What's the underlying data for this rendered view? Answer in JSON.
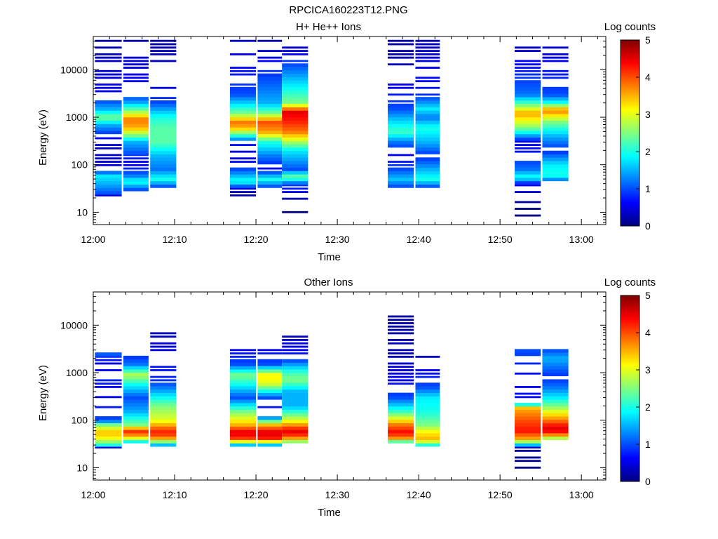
{
  "figure": {
    "title": "RPCICA160223T12.PNG"
  },
  "chart_data": [
    {
      "type": "heatmap",
      "title": "H+ He++ Ions",
      "xlabel": "Time",
      "ylabel": "Energy (eV)",
      "x_ticks": [
        "12:00",
        "12:10",
        "12:20",
        "12:30",
        "12:40",
        "12:50",
        "13:00"
      ],
      "x_range_minutes": [
        0,
        63
      ],
      "y_ticks": [
        "10",
        "100",
        "1000",
        "10000"
      ],
      "y_scale": "log",
      "y_range": [
        5.5,
        50000
      ],
      "colorbar": {
        "label": "Log counts",
        "ticks": [
          "0",
          "1",
          "2",
          "3",
          "4",
          "5"
        ],
        "range": [
          0,
          5
        ]
      },
      "sweeps": [
        {
          "start_min": 0.2,
          "end_min": 3.5,
          "profile": [
            [
              20,
              0
            ],
            [
              25,
              1
            ],
            [
              40,
              1.5
            ],
            [
              60,
              1.8
            ],
            [
              80,
              0.5
            ],
            [
              200,
              0.3
            ],
            [
              400,
              0.7
            ],
            [
              700,
              1.5
            ],
            [
              1000,
              2.5
            ],
            [
              1500,
              1.5
            ],
            [
              3000,
              0.6
            ],
            [
              40000,
              0.2
            ]
          ]
        },
        {
          "start_min": 3.7,
          "end_min": 6.8,
          "profile": [
            [
              25,
              0
            ],
            [
              30,
              1
            ],
            [
              45,
              2
            ],
            [
              60,
              1.2
            ],
            [
              100,
              0.5
            ],
            [
              300,
              1.5
            ],
            [
              600,
              3.5
            ],
            [
              900,
              3.8
            ],
            [
              1400,
              2.5
            ],
            [
              2000,
              1.5
            ],
            [
              3000,
              0.8
            ],
            [
              40000,
              0.2
            ]
          ]
        },
        {
          "start_min": 7.0,
          "end_min": 10.2,
          "profile": [
            [
              35,
              1
            ],
            [
              50,
              2.0
            ],
            [
              80,
              1.2
            ],
            [
              150,
              1.5
            ],
            [
              300,
              2.3
            ],
            [
              600,
              2.3
            ],
            [
              1000,
              2.0
            ],
            [
              2000,
              1.0
            ],
            [
              4000,
              0.5
            ],
            [
              40000,
              0.2
            ]
          ]
        },
        {
          "start_min": 16.8,
          "end_min": 20.0,
          "profile": [
            [
              14,
              0
            ],
            [
              30,
              0.4
            ],
            [
              45,
              2.0
            ],
            [
              80,
              1.0
            ],
            [
              150,
              0.4
            ],
            [
              300,
              0.8
            ],
            [
              600,
              3.5
            ],
            [
              800,
              3.8
            ],
            [
              1200,
              2.5
            ],
            [
              3000,
              1.0
            ],
            [
              40000,
              0.3
            ]
          ]
        },
        {
          "start_min": 20.2,
          "end_min": 23.2,
          "profile": [
            [
              35,
              1
            ],
            [
              50,
              2.0
            ],
            [
              80,
              0.6
            ],
            [
              150,
              1.2
            ],
            [
              300,
              2.0
            ],
            [
              500,
              3.6
            ],
            [
              800,
              4.0
            ],
            [
              1200,
              2.5
            ],
            [
              2000,
              1.5
            ],
            [
              40000,
              0.2
            ]
          ]
        },
        {
          "start_min": 23.2,
          "end_min": 26.4,
          "profile": [
            [
              6,
              0
            ],
            [
              14,
              0
            ],
            [
              40,
              1
            ],
            [
              55,
              2.5
            ],
            [
              80,
              1.0
            ],
            [
              200,
              1.8
            ],
            [
              500,
              3.8
            ],
            [
              800,
              4.2
            ],
            [
              1300,
              4.5
            ],
            [
              2000,
              2.5
            ],
            [
              30000,
              0.3
            ]
          ]
        },
        {
          "start_min": 36.2,
          "end_min": 39.4,
          "profile": [
            [
              35,
              1
            ],
            [
              50,
              1.6
            ],
            [
              80,
              1.0
            ],
            [
              150,
              0.5
            ],
            [
              300,
              1.2
            ],
            [
              500,
              2.2
            ],
            [
              900,
              1.6
            ],
            [
              1500,
              1.0
            ],
            [
              10000,
              0.3
            ],
            [
              40000,
              0.2
            ]
          ]
        },
        {
          "start_min": 39.6,
          "end_min": 42.6,
          "profile": [
            [
              35,
              1
            ],
            [
              50,
              2.0
            ],
            [
              80,
              1.5
            ],
            [
              150,
              0.8
            ],
            [
              300,
              1.5
            ],
            [
              600,
              2.0
            ],
            [
              1000,
              1.2
            ],
            [
              1500,
              1.8
            ],
            [
              3000,
              0.8
            ],
            [
              40000,
              0.3
            ]
          ]
        },
        {
          "start_min": 51.8,
          "end_min": 55.0,
          "profile": [
            [
              8,
              0
            ],
            [
              12,
              0
            ],
            [
              40,
              0.7
            ],
            [
              55,
              2.0
            ],
            [
              80,
              1.2
            ],
            [
              150,
              0.8
            ],
            [
              300,
              0.5
            ],
            [
              600,
              2.5
            ],
            [
              1200,
              3.6
            ],
            [
              1800,
              2.5
            ],
            [
              3000,
              1.2
            ],
            [
              40000,
              0.2
            ]
          ]
        },
        {
          "start_min": 55.2,
          "end_min": 58.4,
          "profile": [
            [
              45,
              1
            ],
            [
              60,
              2.0
            ],
            [
              100,
              1.8
            ],
            [
              200,
              0.8
            ],
            [
              400,
              1.5
            ],
            [
              800,
              2.5
            ],
            [
              1400,
              3.8
            ],
            [
              2000,
              2.0
            ],
            [
              3000,
              1.0
            ],
            [
              40000,
              0.3
            ]
          ]
        }
      ]
    },
    {
      "type": "heatmap",
      "title": "Other Ions",
      "xlabel": "Time",
      "ylabel": "Energy (eV)",
      "x_ticks": [
        "12:00",
        "12:10",
        "12:20",
        "12:30",
        "12:40",
        "12:50",
        "13:00"
      ],
      "x_range_minutes": [
        0,
        63
      ],
      "y_ticks": [
        "10",
        "100",
        "1000",
        "10000"
      ],
      "y_scale": "log",
      "y_range": [
        5.5,
        50000
      ],
      "colorbar": {
        "label": "Log counts",
        "ticks": [
          "0",
          "1",
          "2",
          "3",
          "4",
          "5"
        ],
        "range": [
          0,
          5
        ]
      },
      "sweeps": [
        {
          "start_min": 0.2,
          "end_min": 3.5,
          "profile": [
            [
              25,
              0.3
            ],
            [
              30,
              2.0
            ],
            [
              40,
              3.0
            ],
            [
              55,
              3.5
            ],
            [
              80,
              2.5
            ],
            [
              100,
              1.0
            ],
            [
              300,
              0.5
            ],
            [
              700,
              0.8
            ],
            [
              1500,
              0.5
            ],
            [
              2800,
              1.2
            ]
          ]
        },
        {
          "start_min": 3.7,
          "end_min": 6.8,
          "profile": [
            [
              35,
              1.8
            ],
            [
              45,
              3.5
            ],
            [
              60,
              4.2
            ],
            [
              80,
              2.5
            ],
            [
              150,
              1.5
            ],
            [
              300,
              1.0
            ],
            [
              600,
              2.0
            ],
            [
              900,
              2.8
            ],
            [
              1500,
              1.2
            ],
            [
              3000,
              0.6
            ]
          ]
        },
        {
          "start_min": 7.0,
          "end_min": 10.2,
          "profile": [
            [
              30,
              1.5
            ],
            [
              45,
              4.0
            ],
            [
              60,
              4.2
            ],
            [
              100,
              3.0
            ],
            [
              200,
              2.5
            ],
            [
              400,
              1.5
            ],
            [
              700,
              0.8
            ],
            [
              1500,
              0.7
            ],
            [
              3000,
              0.5
            ],
            [
              10000,
              0.2
            ]
          ]
        },
        {
          "start_min": 16.8,
          "end_min": 20.0,
          "profile": [
            [
              25,
              0.2
            ],
            [
              30,
              1.5
            ],
            [
              40,
              4.0
            ],
            [
              55,
              4.6
            ],
            [
              80,
              3.5
            ],
            [
              150,
              2.5
            ],
            [
              300,
              1.0
            ],
            [
              600,
              2.0
            ],
            [
              900,
              2.5
            ],
            [
              1500,
              1.0
            ],
            [
              3000,
              0.6
            ]
          ]
        },
        {
          "start_min": 20.2,
          "end_min": 23.2,
          "profile": [
            [
              25,
              0.2
            ],
            [
              30,
              1.5
            ],
            [
              40,
              4.2
            ],
            [
              55,
              4.6
            ],
            [
              80,
              3.5
            ],
            [
              130,
              0.5
            ],
            [
              300,
              1.0
            ],
            [
              600,
              3.0
            ],
            [
              900,
              3.2
            ],
            [
              1500,
              1.0
            ],
            [
              3000,
              0.6
            ]
          ]
        },
        {
          "start_min": 23.2,
          "end_min": 26.4,
          "profile": [
            [
              35,
              2.5
            ],
            [
              45,
              4.0
            ],
            [
              60,
              4.5
            ],
            [
              100,
              3.0
            ],
            [
              200,
              1.5
            ],
            [
              400,
              1.5
            ],
            [
              700,
              2.5
            ],
            [
              1000,
              2.2
            ],
            [
              2000,
              0.8
            ],
            [
              6000,
              0.3
            ]
          ]
        },
        {
          "start_min": 36.2,
          "end_min": 39.4,
          "profile": [
            [
              30,
              0.5
            ],
            [
              40,
              3.5
            ],
            [
              55,
              4.4
            ],
            [
              80,
              3.8
            ],
            [
              150,
              2.2
            ],
            [
              300,
              1.0
            ],
            [
              700,
              0.6
            ],
            [
              1500,
              0.4
            ],
            [
              2500,
              0.3
            ],
            [
              16000,
              0.2
            ]
          ]
        },
        {
          "start_min": 39.6,
          "end_min": 42.6,
          "profile": [
            [
              30,
              2.0
            ],
            [
              40,
              3.5
            ],
            [
              55,
              3.2
            ],
            [
              80,
              2.5
            ],
            [
              150,
              2.0
            ],
            [
              300,
              1.8
            ],
            [
              500,
              1.0
            ],
            [
              2200,
              0.3
            ]
          ]
        },
        {
          "start_min": 51.8,
          "end_min": 55.0,
          "profile": [
            [
              7,
              0
            ],
            [
              10,
              0
            ],
            [
              25,
              0.2
            ],
            [
              40,
              3.5
            ],
            [
              60,
              4.3
            ],
            [
              100,
              4.0
            ],
            [
              180,
              3.5
            ],
            [
              250,
              0.7
            ],
            [
              700,
              0.6
            ],
            [
              1500,
              0.8
            ],
            [
              3000,
              1.0
            ]
          ]
        },
        {
          "start_min": 55.2,
          "end_min": 58.4,
          "profile": [
            [
              40,
              2.5
            ],
            [
              55,
              4.3
            ],
            [
              70,
              4.5
            ],
            [
              100,
              3.8
            ],
            [
              200,
              2.5
            ],
            [
              300,
              1.8
            ],
            [
              500,
              1.2
            ],
            [
              800,
              0.8
            ],
            [
              2000,
              1.5
            ],
            [
              3000,
              1.0
            ]
          ]
        }
      ]
    }
  ]
}
